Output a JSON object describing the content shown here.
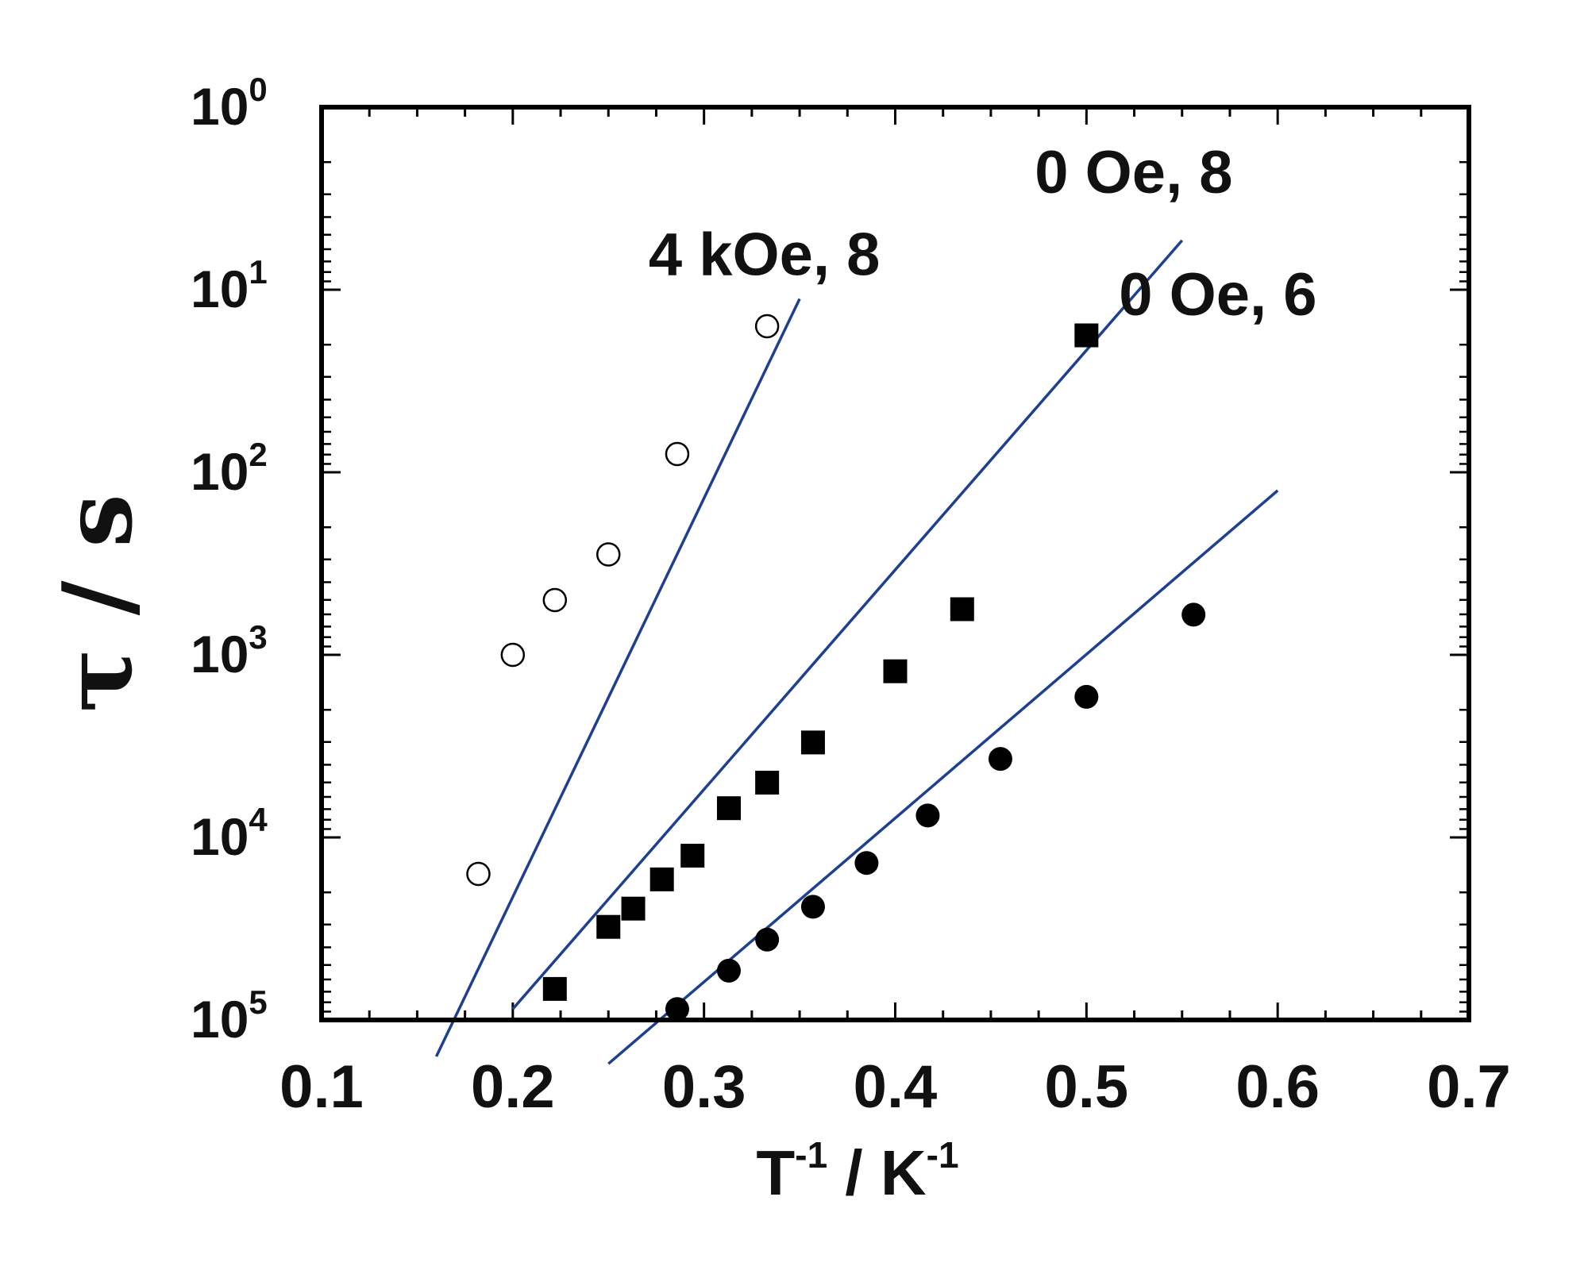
{
  "chart_data": {
    "type": "scatter",
    "xlabel_base": "T",
    "xlabel_exp": "-1",
    "xlabel_sep": " / K",
    "xlabel_exp2": "-1",
    "ylabel": "τ / s",
    "x_ticks": [
      "0.1",
      "0.2",
      "0.3",
      "0.4",
      "0.5",
      "0.6",
      "0.7"
    ],
    "xlim": [
      0.1,
      0.7
    ],
    "y_ticks": [
      {
        "mantissa": "10",
        "exponent": "0"
      },
      {
        "mantissa": "10",
        "exponent": "1"
      },
      {
        "mantissa": "10",
        "exponent": "2"
      },
      {
        "mantissa": "10",
        "exponent": "3"
      },
      {
        "mantissa": "10",
        "exponent": "4"
      },
      {
        "mantissa": "10",
        "exponent": "5"
      }
    ],
    "y_scale": "log (decades shown inverted, 10^0 at top)",
    "grid": false,
    "series": [
      {
        "name": "4 kOe, 8",
        "marker": "open-circle",
        "x": [
          0.182,
          0.2,
          0.222,
          0.25,
          0.286,
          0.333
        ],
        "y": [
          4.2,
          3.0,
          2.7,
          2.45,
          1.9,
          1.2
        ],
        "fit_x": [
          0.16,
          0.35
        ],
        "fit_y": [
          5.2,
          1.05
        ]
      },
      {
        "name": "0 Oe, 8",
        "marker": "filled-square",
        "x": [
          0.222,
          0.25,
          0.263,
          0.278,
          0.294,
          0.313,
          0.333,
          0.357,
          0.4,
          0.435,
          0.5
        ],
        "y": [
          4.83,
          4.49,
          4.39,
          4.23,
          4.1,
          3.84,
          3.7,
          3.48,
          3.09,
          2.75,
          1.25
        ],
        "fit_x": [
          0.2,
          0.55
        ],
        "fit_y": [
          4.94,
          0.73
        ]
      },
      {
        "name": "0 Oe, 6",
        "marker": "filled-circle",
        "x": [
          0.286,
          0.313,
          0.333,
          0.357,
          0.385,
          0.417,
          0.455,
          0.5,
          0.556
        ],
        "y": [
          4.94,
          4.73,
          4.56,
          4.38,
          4.14,
          3.88,
          3.57,
          3.23,
          2.78
        ],
        "fit_x": [
          0.25,
          0.6
        ],
        "fit_y": [
          5.24,
          2.1
        ]
      }
    ]
  }
}
